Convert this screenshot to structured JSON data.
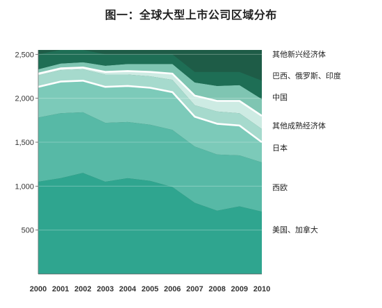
{
  "chart_data": {
    "type": "area",
    "title": "图一：全球大型上市公司区域分布",
    "x": [
      "2000",
      "2001",
      "2002",
      "2003",
      "2004",
      "2005",
      "2006",
      "2007",
      "2008",
      "2009",
      "2010"
    ],
    "ylim": [
      0,
      2550
    ],
    "yticks": [
      {
        "value": 500,
        "label": "500"
      },
      {
        "value": 1000,
        "label": "1,000"
      },
      {
        "value": 1500,
        "label": "1,500"
      },
      {
        "value": 2000,
        "label": "2,000"
      },
      {
        "value": 2500,
        "label": "2,500"
      }
    ],
    "grid": true,
    "legend_position": "right",
    "series": [
      {
        "name": "美国、加拿大",
        "color": "#2fa58f",
        "values": [
          1050,
          1090,
          1150,
          1050,
          1090,
          1060,
          990,
          810,
          720,
          770,
          710
        ]
      },
      {
        "name": "西欧",
        "color": "#57b9a6",
        "values": [
          730,
          740,
          690,
          670,
          640,
          640,
          650,
          640,
          640,
          580,
          560
        ]
      },
      {
        "name": "日本",
        "color": "#7ccab9",
        "values": [
          350,
          360,
          360,
          410,
          410,
          420,
          430,
          340,
          350,
          340,
          230
        ]
      },
      {
        "name": "其他成熟经济体",
        "color": "#a6dacd",
        "values": [
          130,
          130,
          130,
          140,
          130,
          130,
          140,
          130,
          140,
          140,
          150
        ]
      },
      {
        "name": "中国",
        "color": "#cdebe3",
        "values": [
          20,
          20,
          20,
          30,
          40,
          50,
          70,
          110,
          120,
          140,
          150
        ]
      },
      {
        "name": "巴西、俄罗斯、印度",
        "color": "#7fc5b2",
        "values": [
          50,
          55,
          60,
          70,
          80,
          90,
          110,
          150,
          170,
          180,
          190
        ]
      },
      {
        "name": "其他新兴经济体",
        "color": "#1e6e55",
        "values": [
          170,
          155,
          140,
          130,
          110,
          110,
          110,
          120,
          160,
          150,
          210
        ]
      }
    ],
    "highlight_boundaries": [
      {
        "after_series": "日本",
        "color": "#ffffff"
      },
      {
        "after_series": "中国",
        "color": "#ffffff"
      }
    ]
  }
}
